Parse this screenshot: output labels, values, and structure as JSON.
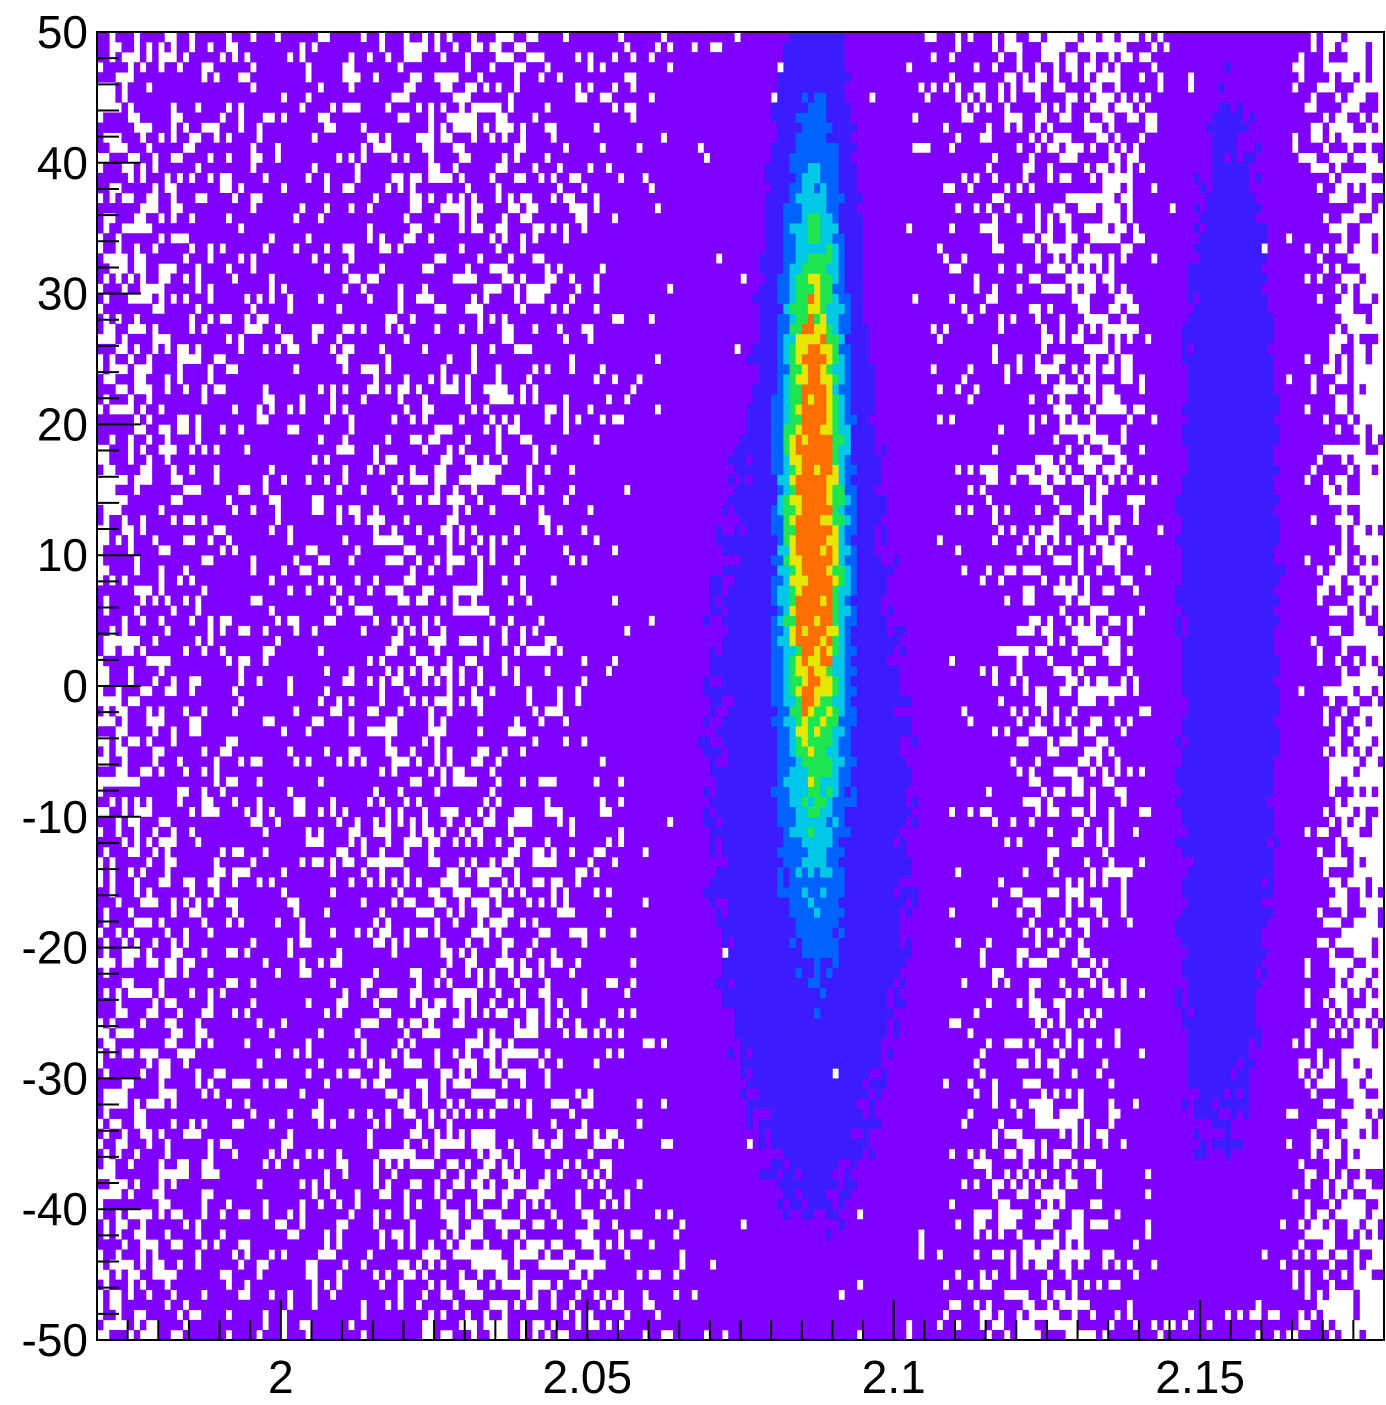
{
  "chart_data": {
    "type": "heatmap",
    "title": "",
    "xlabel": "",
    "ylabel": "",
    "xlim": [
      1.97,
      2.18
    ],
    "ylim": [
      -50,
      50
    ],
    "x_ticks": [
      {
        "value": 2.0,
        "label": "2"
      },
      {
        "value": 2.05,
        "label": "2.05"
      },
      {
        "value": 2.1,
        "label": "2.1"
      },
      {
        "value": 2.15,
        "label": "2.15"
      }
    ],
    "y_ticks": [
      {
        "value": 50,
        "label": "50"
      },
      {
        "value": 40,
        "label": "40"
      },
      {
        "value": 30,
        "label": "30"
      },
      {
        "value": 20,
        "label": "20"
      },
      {
        "value": 10,
        "label": "10"
      },
      {
        "value": 0,
        "label": "0"
      },
      {
        "value": -10,
        "label": "-10"
      },
      {
        "value": -20,
        "label": "-20"
      },
      {
        "value": -30,
        "label": "-30"
      },
      {
        "value": -40,
        "label": "-40"
      },
      {
        "value": -50,
        "label": "-50"
      }
    ],
    "x_minor_step": 0.005,
    "y_minor_step": 2,
    "grid": false,
    "colormap": [
      "#8000ff",
      "#3a1cff",
      "#0062ff",
      "#00c8e6",
      "#1ee650",
      "#e6e600",
      "#ff6e00",
      "#ff0000"
    ],
    "density_features": [
      {
        "name": "main peak",
        "x_center": 2.087,
        "y_center": 15,
        "x_sigma": 0.0035,
        "y_sigma": 18,
        "peak": 1.0
      },
      {
        "name": "main peak lower tail",
        "x_center": 2.088,
        "y_center": -15,
        "x_sigma": 0.012,
        "y_sigma": 22,
        "peak": 0.14
      },
      {
        "name": "broad band",
        "x_center": 2.082,
        "y_center": 10,
        "x_sigma": 0.022,
        "y_sigma": 38,
        "peak": 0.09
      },
      {
        "name": "right band",
        "x_center": 2.155,
        "y_center": 10,
        "x_sigma": 0.007,
        "y_sigma": 30,
        "peak": 0.22
      },
      {
        "name": "right band lower tail",
        "x_center": 2.148,
        "y_center": -30,
        "x_sigma": 0.009,
        "y_sigma": 14,
        "peak": 0.06
      }
    ]
  }
}
